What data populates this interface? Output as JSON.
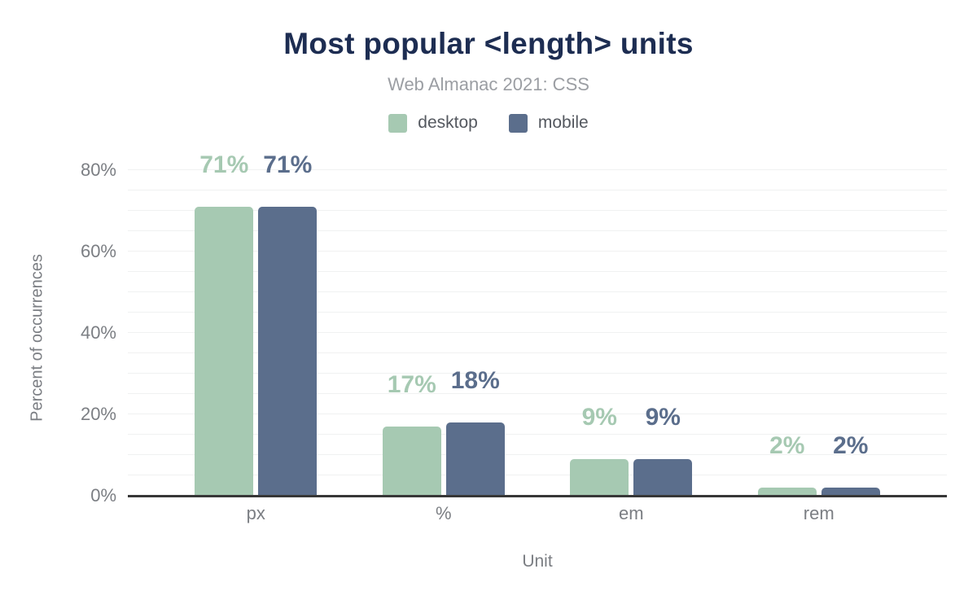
{
  "header": {
    "title": "Most popular <length> units",
    "subtitle": "Web Almanac 2021: CSS"
  },
  "chart_data": {
    "type": "bar",
    "title": "Most popular <length> units",
    "subtitle": "Web Almanac 2021: CSS",
    "categories": [
      "px",
      "%",
      "em",
      "rem"
    ],
    "series": [
      {
        "name": "desktop",
        "color": "#a6c9b2",
        "values": [
          71,
          17,
          9,
          2
        ]
      },
      {
        "name": "mobile",
        "color": "#5b6e8c",
        "values": [
          71,
          18,
          9,
          2
        ]
      }
    ],
    "value_suffix": "%",
    "xlabel": "Unit",
    "ylabel": "Percent of occurrences",
    "ylim": [
      0,
      85
    ],
    "yticks": [
      0,
      20,
      40,
      60,
      80
    ],
    "ytick_suffix": "%",
    "gridline_step": 5,
    "grid": "on",
    "legend_position": "top"
  },
  "colors": {
    "background": "#ffffff",
    "title": "#1d2d52",
    "subtitle": "#9b9ea3",
    "legend_text": "#54585f",
    "axis_text": "#7b7e83",
    "gridline": "#f0f1f1",
    "axis_line": "#373737"
  }
}
